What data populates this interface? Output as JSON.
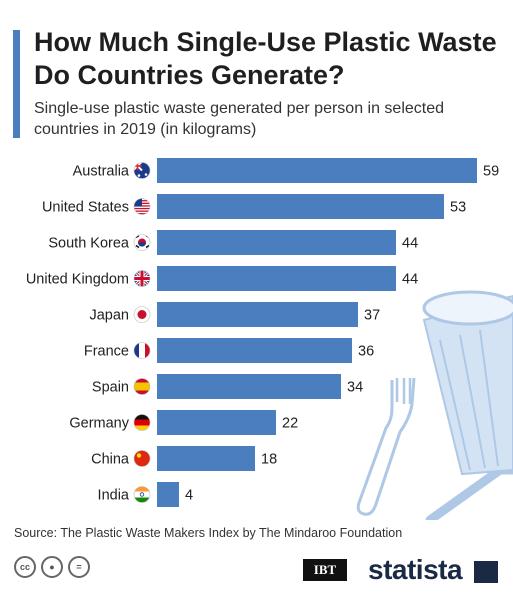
{
  "title": "How Much Single-Use Plastic Waste Do Countries Generate?",
  "subtitle": "Single-use plastic waste generated per person in selected countries in 2019 (in kilograms)",
  "source": "Source: The Plastic Waste Makers Index by The Mindaroo Foundation",
  "footer": {
    "ibt_logo": "IBT",
    "statista_logo": "statista"
  },
  "colors": {
    "bar": "#4a7ebf",
    "accent": "#4a7ebf",
    "illustration": "#aec8e6"
  },
  "chart_data": {
    "type": "bar",
    "orientation": "horizontal",
    "title": "How Much Single-Use Plastic Waste Do Countries Generate?",
    "subtitle": "Single-use plastic waste generated per person in selected countries in 2019 (in kilograms)",
    "categories": [
      "Australia",
      "United States",
      "South Korea",
      "United Kingdom",
      "Japan",
      "France",
      "Spain",
      "Germany",
      "China",
      "India"
    ],
    "values": [
      59,
      53,
      44,
      44,
      37,
      36,
      34,
      22,
      18,
      4
    ],
    "flags": [
      "australia-flag-icon",
      "usa-flag-icon",
      "south-korea-flag-icon",
      "uk-flag-icon",
      "japan-flag-icon",
      "france-flag-icon",
      "spain-flag-icon",
      "germany-flag-icon",
      "china-flag-icon",
      "india-flag-icon"
    ],
    "xlim": [
      0,
      59
    ],
    "grid": false,
    "data_labels": true
  }
}
